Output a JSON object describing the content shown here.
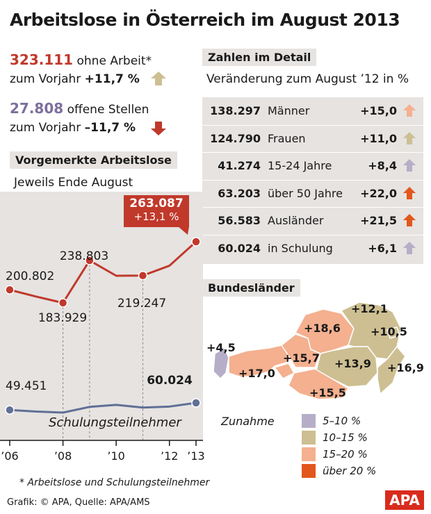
{
  "title": "Arbeitslose in Österreich im August 2013",
  "kpi": {
    "unemployed_value": "323.111",
    "unemployed_label": "ohne Arbeit*",
    "unemployed_yoy_label": "zum Vorjahr",
    "unemployed_yoy": "+11,7 %",
    "unemployed_arrow": "up-arrow-icon",
    "vacancies_value": "27.808",
    "vacancies_label": "offene Stellen",
    "vacancies_yoy_label": "zum Vorjahr",
    "vacancies_yoy": "–11,7 %",
    "vacancies_arrow": "down-arrow-icon"
  },
  "detail": {
    "header": "Zahlen im Detail",
    "subheader": "Veränderung zum August ’12 in %",
    "rows": [
      {
        "value": "138.297",
        "label": "Männer",
        "change": "+15,0",
        "color": "#f4b08f"
      },
      {
        "value": "124.790",
        "label": "Frauen",
        "change": "+11,0",
        "color": "#cdbf92"
      },
      {
        "value": "41.274",
        "label": "15-24 Jahre",
        "change": "+8,4",
        "color": "#b6aec8"
      },
      {
        "value": "63.203",
        "label": "über 50 Jahre",
        "change": "+22,0",
        "color": "#e2571c"
      },
      {
        "value": "56.583",
        "label": "Ausländer",
        "change": "+21,5",
        "color": "#e2571c"
      },
      {
        "value": "60.024",
        "label": "in Schulung",
        "change": "+6,1",
        "color": "#b6aec8"
      }
    ]
  },
  "chart": {
    "header": "Vorgemerkte Arbeitslose",
    "subheader": "Jeweils Ende August",
    "callout_value": "263.087",
    "callout_change": "+13,1 %",
    "series2_label": "Schulungsteilnehmer"
  },
  "chart_data": {
    "type": "line",
    "x": [
      2006,
      2007,
      2008,
      2009,
      2010,
      2011,
      2012,
      2013
    ],
    "x_tick_labels": [
      "’06",
      "’08",
      "’10",
      "’12",
      "’13"
    ],
    "x_tick_values": [
      2006,
      2008,
      2010,
      2012,
      2013
    ],
    "series": [
      {
        "name": "Vorgemerkte Arbeitslose",
        "color": "#c0392b",
        "values": [
          200802,
          192000,
          183929,
          238803,
          219000,
          219247,
          232000,
          263087
        ],
        "labels": {
          "2006": "200.802",
          "2008": "183.929",
          "2009": "238.803",
          "2011": "219.247"
        }
      },
      {
        "name": "Schulungsteilnehmer",
        "color": "#5f6f96",
        "values": [
          49451,
          47000,
          45500,
          54000,
          57000,
          53000,
          54500,
          60024
        ],
        "labels": {
          "2006": "49.451",
          "2013": "60.024"
        }
      }
    ]
  },
  "map": {
    "header": "Bundesländer",
    "legend_title": "Zunahme",
    "labels": [
      "+12,1",
      "+18,6",
      "+10,5",
      "+4,5",
      "+15,7",
      "+13,9",
      "+17,0",
      "+16,9",
      "+15,5"
    ],
    "legend": [
      {
        "label": "5–10 %",
        "color": "#b6aec8"
      },
      {
        "label": "10–15 %",
        "color": "#cdbf92"
      },
      {
        "label": "15–20 %",
        "color": "#f4b08f"
      },
      {
        "label": "über 20 %",
        "color": "#e2571c"
      }
    ]
  },
  "footnote": "* Arbeitslose und Schulungsteilnehmer",
  "source": "Grafik: © APA, Quelle: APA/AMS",
  "logo": "APA"
}
